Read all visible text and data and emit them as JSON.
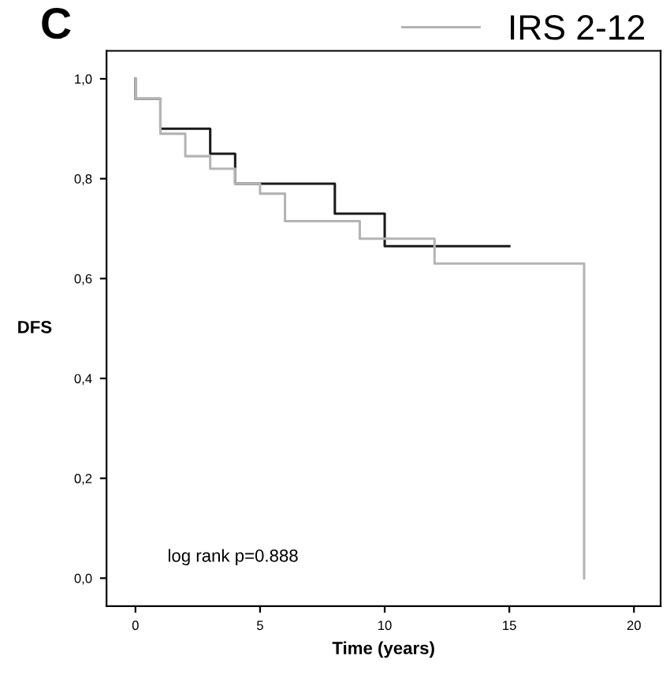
{
  "chart_data": {
    "type": "step",
    "title": "C",
    "xlabel": "Time (years)",
    "ylabel": "DFS",
    "xlim": [
      -1.16,
      21.07
    ],
    "xticks": [
      0,
      5,
      10,
      15,
      20
    ],
    "ylim": [
      -0.056,
      1.056
    ],
    "yticks": [
      {
        "value": 0.0,
        "label": "0,0"
      },
      {
        "value": 0.2,
        "label": "0,2"
      },
      {
        "value": 0.4,
        "label": "0,4"
      },
      {
        "value": 0.6,
        "label": "0,6"
      },
      {
        "value": 0.8,
        "label": "0,8"
      },
      {
        "value": 1.0,
        "label": "1,0"
      }
    ],
    "grid": false,
    "legend": "top right",
    "series": [
      {
        "color": "#1a1a1a",
        "x": [
          0,
          0,
          1,
          3,
          4,
          8,
          10,
          15
        ],
        "values": [
          1.0,
          0.96,
          0.9,
          0.85,
          0.79,
          0.73,
          0.665,
          0.665
        ]
      },
      {
        "name": "IRS 2-12",
        "color": "#b4b4b4",
        "x": [
          0,
          0,
          1,
          2,
          3,
          4,
          5,
          6,
          9,
          12,
          18
        ],
        "values": [
          1.0,
          0.96,
          0.89,
          0.845,
          0.82,
          0.79,
          0.77,
          0.715,
          0.68,
          0.63,
          0.0
        ]
      }
    ],
    "annotations": [
      "log rank p=0.888"
    ]
  }
}
